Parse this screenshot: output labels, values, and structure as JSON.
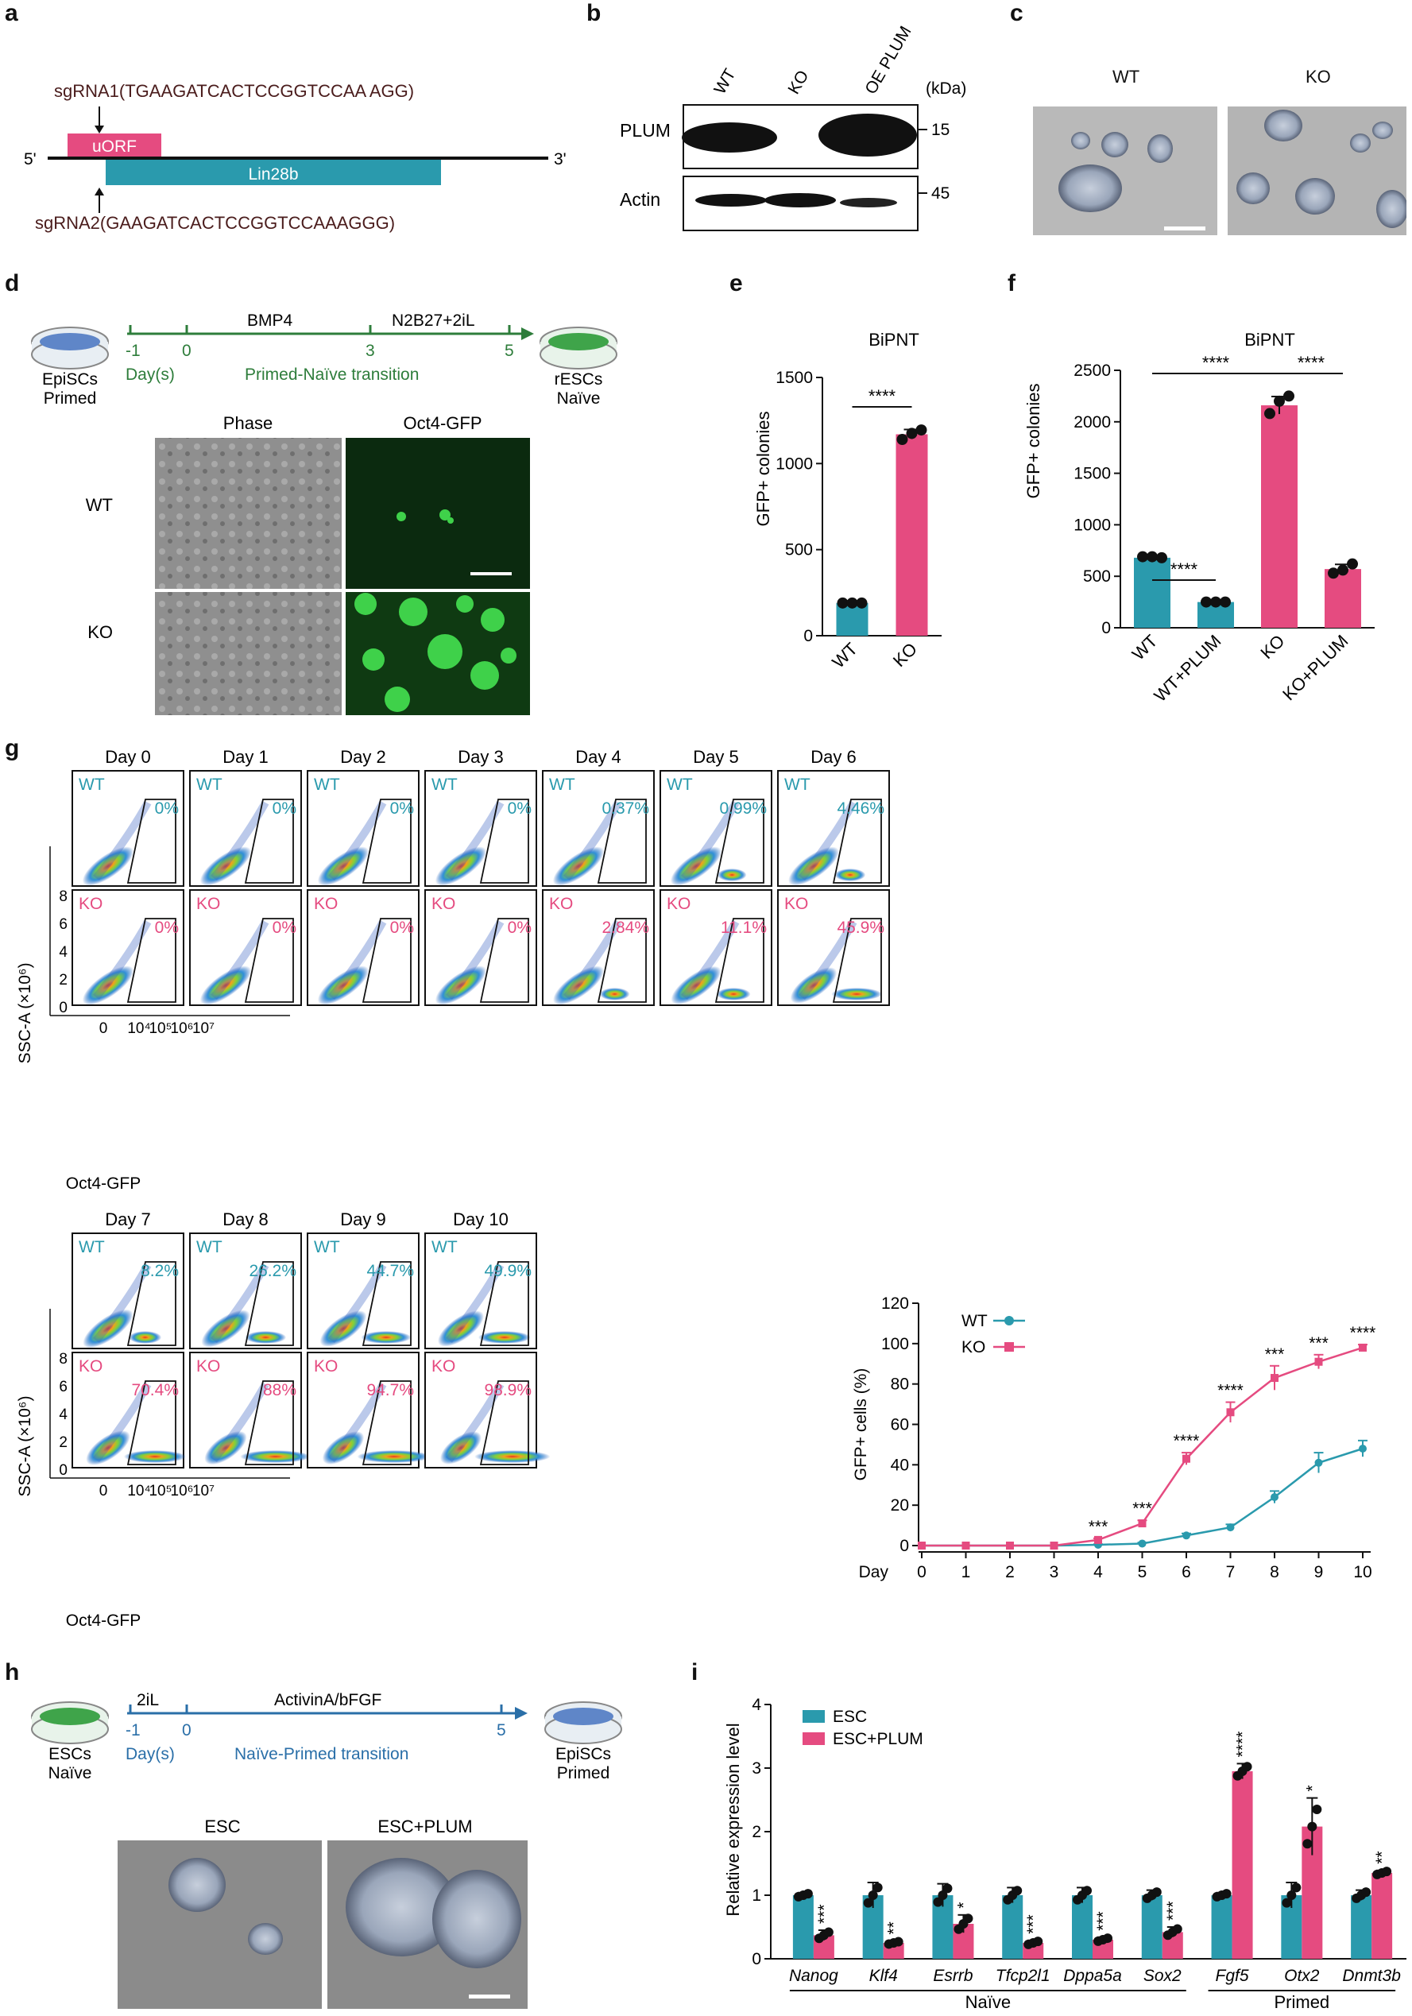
{
  "panel_labels": [
    "a",
    "b",
    "c",
    "d",
    "e",
    "f",
    "g",
    "h",
    "i"
  ],
  "colors": {
    "wt": "#2a9aad",
    "ko": "#e54b80",
    "green": "#2e7d3b",
    "blue": "#2a6fa8"
  },
  "panel_a": {
    "sgrna1": "sgRNA1(TGAAGATCACTCCGGTCCAA AGG)",
    "sgrna2": "sgRNA2(GAAGATCACTCCGGTCCAAAGGG)",
    "uorf": "uORF",
    "gene": "Lin28b",
    "five": "5'",
    "three": "3'"
  },
  "panel_b": {
    "lanes": [
      "WT",
      "KO",
      "OE PLUM"
    ],
    "unit": "(kDa)",
    "rows": [
      {
        "label": "PLUM",
        "kda": "15"
      },
      {
        "label": "Actin",
        "kda": "45"
      }
    ]
  },
  "panel_c": {
    "labels": [
      "WT",
      "KO"
    ]
  },
  "panel_d": {
    "start_label": "EpiSCs",
    "start_state": "Primed",
    "end_label": "rESCs",
    "end_state": "Naïve",
    "ticks": [
      "-1",
      "0",
      "3",
      "5"
    ],
    "day_label": "Day(s)",
    "stage1": "BMP4",
    "stage2": "N2B27+2iL",
    "transition": "Primed-Naïve transition",
    "col_headers": [
      "Phase",
      "Oct4-GFP"
    ],
    "row_labels": [
      "WT",
      "KO"
    ]
  },
  "chart_data": [
    {
      "panel": "e",
      "type": "bar",
      "title": "BiPNT",
      "categories": [
        "WT",
        "KO"
      ],
      "values": [
        190,
        1170
      ],
      "points": [
        [
          190,
          190,
          190
        ],
        [
          1140,
          1175,
          1195
        ]
      ],
      "ylabel": "GFP+ colonies",
      "ylim": [
        0,
        1500
      ],
      "yticks": [
        "0",
        "500",
        "1000",
        "1500"
      ],
      "significance": [
        {
          "label": "****",
          "from": "WT",
          "to": "KO"
        }
      ]
    },
    {
      "panel": "f",
      "type": "bar",
      "title": "BiPNT",
      "categories": [
        "WT",
        "WT+PLUM",
        "KO",
        "KO+PLUM"
      ],
      "values": [
        680,
        250,
        2160,
        570
      ],
      "points": [
        [
          690,
          690,
          680
        ],
        [
          250,
          250,
          250
        ],
        [
          2080,
          2200,
          2250
        ],
        [
          530,
          560,
          620
        ]
      ],
      "ylabel": "GFP+ colonies",
      "ylim": [
        0,
        2500
      ],
      "yticks": [
        "0",
        "500",
        "1000",
        "1500",
        "2000",
        "2500"
      ],
      "significance": [
        {
          "label": "****",
          "from": "WT",
          "to": "WT+PLUM"
        },
        {
          "label": "****",
          "from": "WT",
          "to": "KO"
        },
        {
          "label": "****",
          "from": "KO",
          "to": "KO+PLUM"
        }
      ]
    },
    {
      "panel": "g",
      "type": "line",
      "x": [
        0,
        1,
        2,
        3,
        4,
        5,
        6,
        7,
        8,
        9,
        10
      ],
      "xlabel": "Day",
      "ylabel": "GFP+ cells (%)",
      "ylim": [
        0,
        120
      ],
      "yticks": [
        "0",
        "20",
        "40",
        "60",
        "80",
        "100",
        "120"
      ],
      "series": [
        {
          "name": "WT",
          "values": [
            0,
            0,
            0,
            0,
            0.4,
            1,
            5,
            9,
            24,
            41,
            48
          ],
          "errors": [
            0,
            0,
            0,
            0,
            0.3,
            0.5,
            1,
            1.5,
            3,
            5,
            4
          ]
        },
        {
          "name": "KO",
          "values": [
            0,
            0,
            0,
            0,
            2.8,
            11,
            43,
            66,
            83,
            91,
            98
          ],
          "errors": [
            0,
            0,
            0,
            0,
            0.8,
            1.5,
            3,
            5,
            6,
            3.5,
            1.5
          ]
        }
      ],
      "significance": [
        "",
        "",
        "",
        "",
        "***",
        "***",
        "****",
        "****",
        "***",
        "***",
        "****"
      ]
    },
    {
      "panel": "i",
      "type": "bar",
      "categories": [
        "Nanog",
        "Klf4",
        "Esrrb",
        "Tfcp2l1",
        "Dppa5a",
        "Sox2",
        "Fgf5",
        "Otx2",
        "Dnmt3b"
      ],
      "series": [
        {
          "name": "ESC",
          "values": [
            1,
            1,
            1,
            1,
            1,
            1,
            1,
            1,
            1
          ]
        },
        {
          "name": "ESC+PLUM",
          "values": [
            0.37,
            0.25,
            0.55,
            0.25,
            0.3,
            0.42,
            2.95,
            2.08,
            1.35
          ]
        }
      ],
      "errors": [
        [
          0.04,
          0.2,
          0.18,
          0.12,
          0.12,
          0.08,
          0.04,
          0.2,
          0.08
        ],
        [
          0.08,
          0.03,
          0.14,
          0.04,
          0.04,
          0.08,
          0.12,
          0.45,
          0.04
        ]
      ],
      "significance": [
        "***",
        "**",
        "*",
        "***",
        "***",
        "***",
        "****",
        "*",
        "**"
      ],
      "ylabel": "Relative expression level",
      "ylim": [
        0,
        4
      ],
      "yticks": [
        "0",
        "1",
        "2",
        "3",
        "4"
      ],
      "groups": [
        {
          "label": "Naïve",
          "from": "Nanog",
          "to": "Sox2"
        },
        {
          "label": "Primed",
          "from": "Fgf5",
          "to": "Dnmt3b"
        }
      ]
    }
  ],
  "panel_g": {
    "days_top": [
      "Day 0",
      "Day 1",
      "Day 2",
      "Day 3",
      "Day 4",
      "Day 5",
      "Day 6"
    ],
    "wt_top": [
      "0%",
      "0%",
      "0%",
      "0%",
      "0.37%",
      "0.99%",
      "4.46%"
    ],
    "ko_top": [
      "0%",
      "0%",
      "0%",
      "0%",
      "2.84%",
      "11.1%",
      "45.9%"
    ],
    "days_bottom": [
      "Day 7",
      "Day 8",
      "Day 9",
      "Day 10"
    ],
    "wt_bottom": [
      "8.2%",
      "26.2%",
      "44.7%",
      "49.9%"
    ],
    "ko_bottom": [
      "70.4%",
      "88%",
      "94.7%",
      "98.9%"
    ],
    "row_wt": "WT",
    "row_ko": "KO",
    "yaxis_label": "SSC-A (×10⁶)",
    "xaxis_label": "Oct4-GFP",
    "y_ticks": [
      "0",
      "2",
      "4",
      "6",
      "8"
    ],
    "x_ticks": [
      "0",
      "10⁴",
      "10⁵",
      "10⁶",
      "10⁷"
    ],
    "legend": [
      "WT",
      "KO"
    ]
  },
  "panel_h": {
    "start_label": "ESCs",
    "start_state": "Naïve",
    "end_label": "EpiSCs",
    "end_state": "Primed",
    "ticks": [
      "-1",
      "0",
      "5"
    ],
    "day_label": "Day(s)",
    "stage1": "2iL",
    "stage2": "ActivinA/bFGF",
    "transition": "Naïve-Primed transition",
    "image_labels": [
      "ESC",
      "ESC+PLUM"
    ]
  },
  "panel_i_legend": [
    "ESC",
    "ESC+PLUM"
  ]
}
